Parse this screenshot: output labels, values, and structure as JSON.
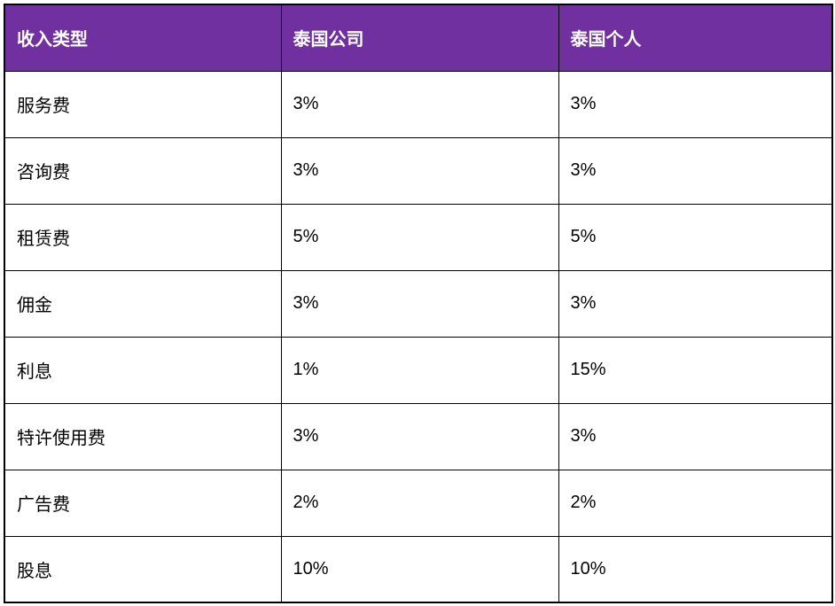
{
  "colors": {
    "header_bg": "#7030A0",
    "header_text": "#ffffff",
    "border": "#000000",
    "cell_bg": "#ffffff",
    "cell_text": "#000000"
  },
  "table": {
    "header": [
      "收入类型",
      "泰国公司",
      "泰国个人"
    ],
    "rows": [
      [
        "服务费",
        "3%",
        "3%"
      ],
      [
        "咨询费",
        "3%",
        "3%"
      ],
      [
        "租赁费",
        "5%",
        "5%"
      ],
      [
        "佣金",
        "3%",
        "3%"
      ],
      [
        "利息",
        "1%",
        "15%"
      ],
      [
        "特许使用费",
        "3%",
        "3%"
      ],
      [
        "广告费",
        "2%",
        "2%"
      ],
      [
        "股息",
        "10%",
        "10%"
      ]
    ]
  }
}
